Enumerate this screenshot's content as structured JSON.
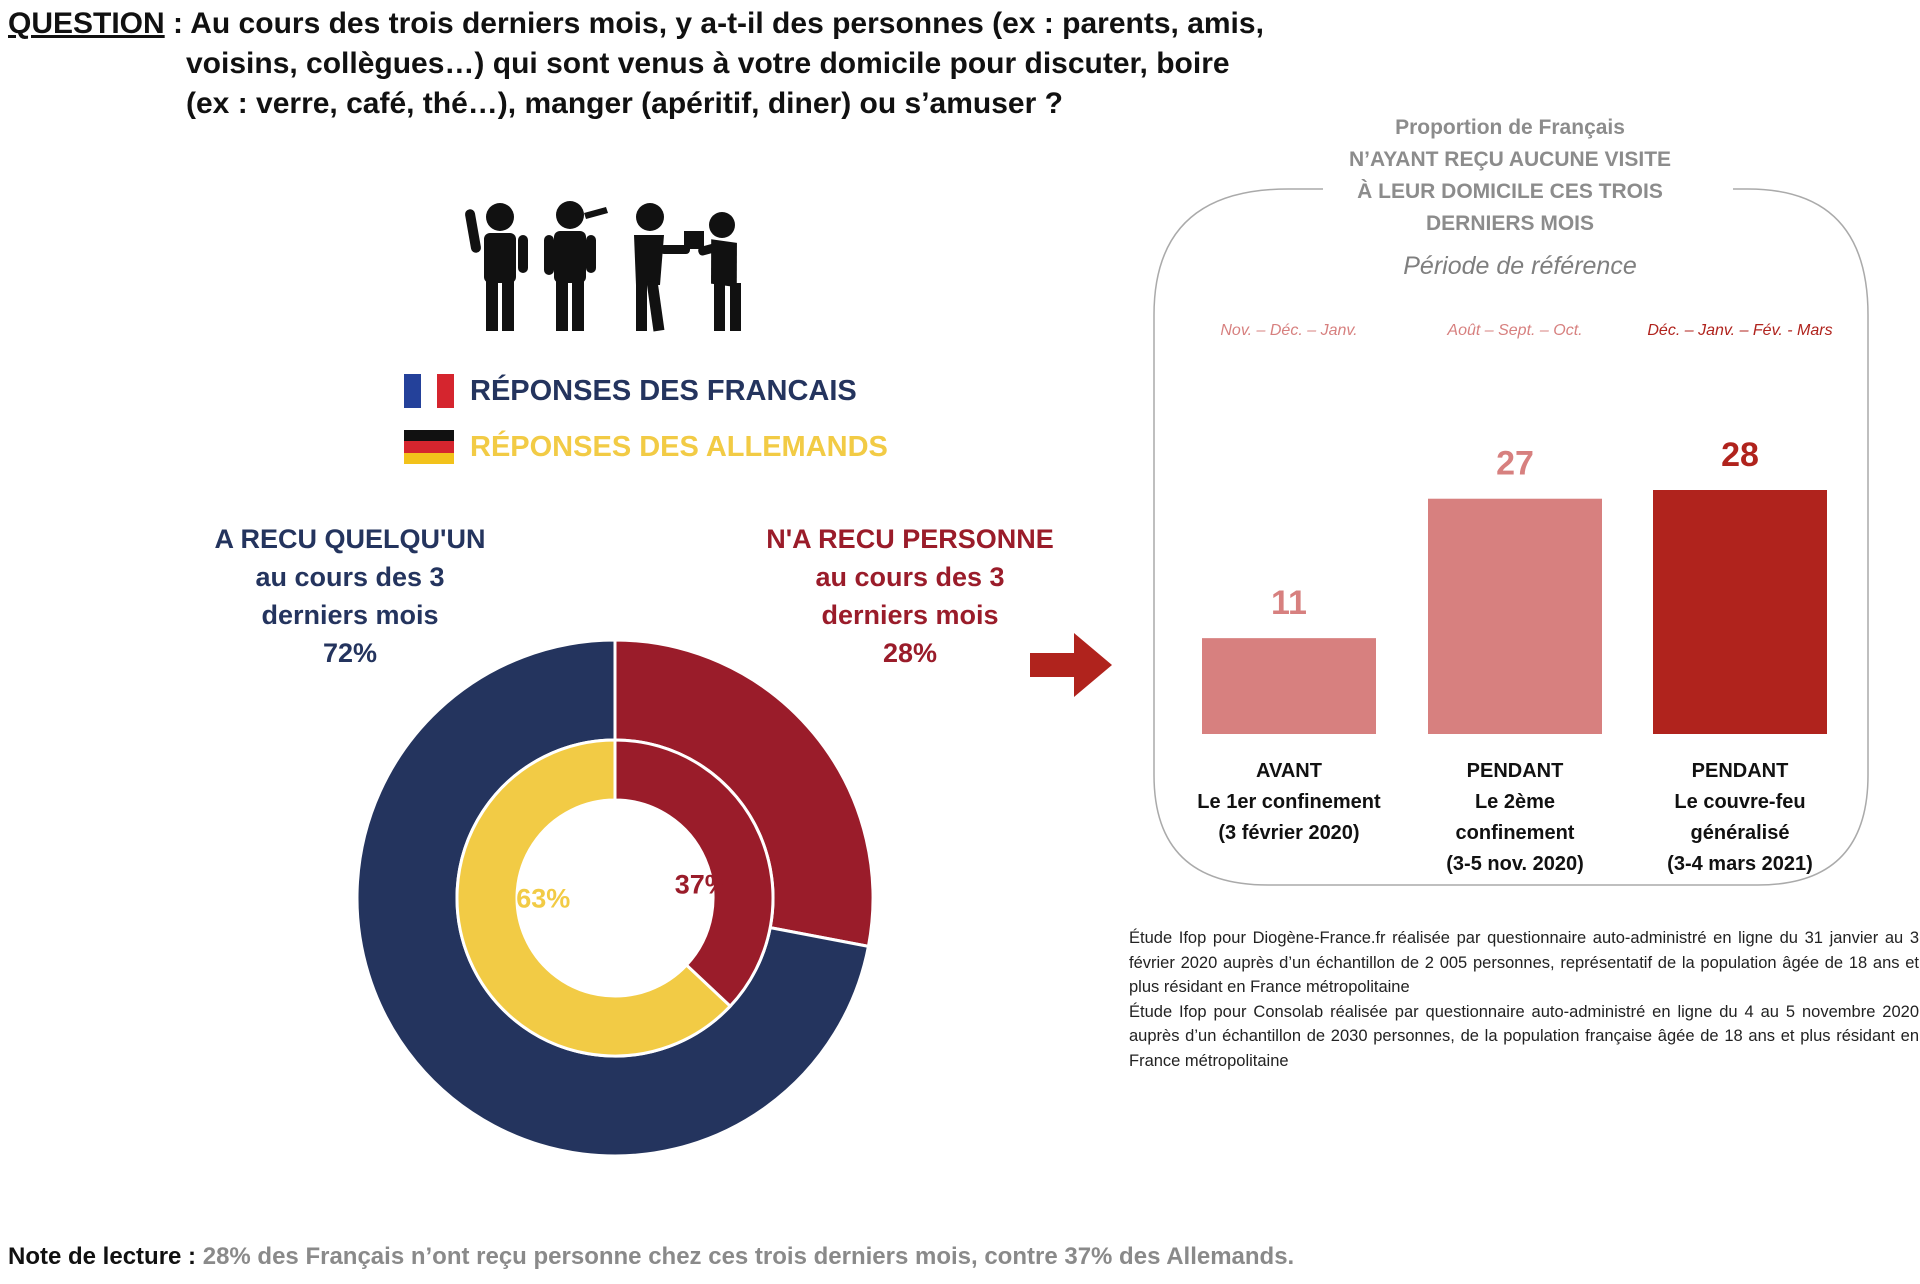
{
  "question": {
    "label": "QUESTION",
    "colon": " : ",
    "line1": "Au cours des trois derniers mois, y a-t-il des personnes (ex : parents, amis,",
    "line2": "voisins, collègues…) qui sont venus à votre domicile pour discuter, boire",
    "line3": "(ex : verre, café, thé…), manger (apéritif, diner) ou s’amuser ?"
  },
  "legend": {
    "fr": "RÉPONSES DES FRANCAIS",
    "de": "RÉPONSES DES ALLEMANDS"
  },
  "colors": {
    "navy": "#24345e",
    "dark_red": "#9a1c2a",
    "yellow": "#f2cb45",
    "bar_light": "#d7807f",
    "bar_dark": "#b0231d",
    "grey": "#8c8c8c"
  },
  "icons": [
    "people-socializing-icon",
    "arrow-right-icon",
    "france-flag-icon",
    "germany-flag-icon"
  ],
  "donut_labels": {
    "received": {
      "line1": "A RECU QUELQU'UN",
      "line2": "au cours des 3",
      "line3": "derniers mois",
      "pct": "72%"
    },
    "none": {
      "line1": "N'A RECU PERSONNE",
      "line2": "au cours des 3",
      "line3": "derniers mois",
      "pct": "28%"
    }
  },
  "panel": {
    "title_line1": "Proportion de Français",
    "title_line2": "N’AYANT REÇU AUCUNE VISITE",
    "title_line3": "À LEUR DOMICILE CES TROIS",
    "title_line4": "DERNIERS MOIS",
    "period_title": "Période de référence"
  },
  "chart_data": [
    {
      "type": "pie",
      "variant": "donut",
      "outer_ring": {
        "name": "RÉPONSES DES FRANCAIS",
        "values": [
          28,
          72
        ],
        "labels": [
          "28%",
          "72%"
        ],
        "colors": [
          "#9a1c2a",
          "#24345e"
        ]
      },
      "inner_ring": {
        "name": "RÉPONSES DES ALLEMANDS",
        "values": [
          37,
          63
        ],
        "labels": [
          "37%",
          "63%"
        ],
        "colors": [
          "#9a1c2a",
          "#f2cb45"
        ]
      }
    },
    {
      "type": "bar",
      "title": "",
      "values": [
        11,
        27,
        28
      ],
      "value_labels": [
        "11",
        "27",
        "28"
      ],
      "periods": [
        "Nov. – Déc. –  Janv.",
        "Août – Sept. – Oct.",
        "Déc. – Janv. – Fév. - Mars"
      ],
      "categories": [
        {
          "line1": "AVANT",
          "line2": "Le 1er confinement",
          "line3": "(3 février 2020)",
          "line4": ""
        },
        {
          "line1": "PENDANT",
          "line2": "Le 2ème",
          "line3": "confinement",
          "line4": "(3-5 nov. 2020)"
        },
        {
          "line1": "PENDANT",
          "line2": "Le couvre-feu",
          "line3": "généralisé",
          "line4": "(3-4 mars 2021)"
        }
      ],
      "colors": [
        "#d7807f",
        "#d7807f",
        "#b0231d"
      ],
      "ylim": [
        0,
        30
      ],
      "grid": false
    }
  ],
  "footnote": {
    "p1": "Étude Ifop pour Diogène-France.fr réalisée par questionnaire auto-administré en ligne du 31 janvier au 3 février 2020 auprès d’un échantillon de 2 005 personnes, représentatif de la population âgée de 18 ans et plus résidant en France métropolitaine",
    "p2": "Étude Ifop pour Consolab réalisée par questionnaire auto-administré en ligne du 4 au 5 novembre 2020 auprès d’un échantillon de 2030 personnes, de la population française âgée de 18 ans et plus résidant en France métropolitaine"
  },
  "reading_note": {
    "label": "Note de lecture : ",
    "text": "28% des Français n’ont reçu personne chez ces trois derniers mois, contre 37% des Allemands."
  }
}
